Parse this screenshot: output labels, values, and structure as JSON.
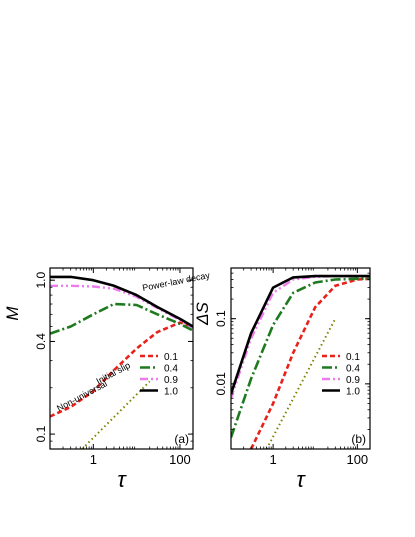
{
  "chart_data": [
    {
      "type": "line",
      "panel_label": "(a)",
      "ylabel": "M",
      "xlabel": "τ",
      "xscale": "log",
      "yscale": "log",
      "xlim": [
        0.1,
        200
      ],
      "ylim": [
        0.08,
        1.2
      ],
      "xticks": [
        {
          "v": 1,
          "label": "1"
        },
        {
          "v": 100,
          "label": "100"
        }
      ],
      "yticks": [
        {
          "v": 0.1,
          "label": "0.1"
        },
        {
          "v": 0.4,
          "label": "0.4"
        },
        {
          "v": 1.0,
          "label": "1.0"
        }
      ],
      "legend_position": "bottom-right",
      "annotations": [
        {
          "text": "Power-law decay",
          "x": 14,
          "y": 0.85,
          "angle": -11
        },
        {
          "text": "Initial slip",
          "x": 1.3,
          "y": 0.21,
          "angle": -28
        },
        {
          "text": "Non-universal",
          "x": 0.16,
          "y": 0.14,
          "angle": -28
        }
      ],
      "series": [
        {
          "name": "0.1",
          "color": "#e8211b",
          "dash": "5,3",
          "width": 2.6,
          "x": [
            0.1,
            0.3,
            1,
            3,
            10,
            30,
            100,
            200
          ],
          "y": [
            0.13,
            0.15,
            0.19,
            0.26,
            0.36,
            0.46,
            0.53,
            0.5
          ]
        },
        {
          "name": "0.4",
          "color": "#1e7a1e",
          "dash": "10,3,2,3",
          "width": 2.6,
          "x": [
            0.1,
            0.3,
            1,
            3,
            10,
            30,
            100,
            200
          ],
          "y": [
            0.45,
            0.5,
            0.6,
            0.7,
            0.69,
            0.6,
            0.52,
            0.47
          ]
        },
        {
          "name": "0.9",
          "color": "#ee7bee",
          "dash": "8,3,2,3,2,3",
          "width": 2.4,
          "x": [
            0.1,
            0.3,
            1,
            3,
            10,
            30,
            100,
            200
          ],
          "y": [
            0.92,
            0.92,
            0.91,
            0.88,
            0.78,
            0.66,
            0.55,
            0.49
          ]
        },
        {
          "name": "1.0",
          "color": "#000000",
          "dash": "",
          "width": 2.6,
          "x": [
            0.1,
            0.3,
            1,
            3,
            10,
            30,
            100,
            200
          ],
          "y": [
            1.05,
            1.05,
            1.0,
            0.92,
            0.8,
            0.67,
            0.56,
            0.5
          ]
        },
        {
          "name": "",
          "color": "#808000",
          "dash": "1.5,3",
          "width": 2,
          "x": [
            0.55,
            20
          ],
          "y": [
            0.08,
            0.22
          ]
        }
      ]
    },
    {
      "type": "line",
      "panel_label": "(b)",
      "ylabel": "ΔS",
      "xlabel": "τ",
      "xscale": "log",
      "yscale": "log",
      "xlim": [
        0.1,
        200
      ],
      "ylim": [
        0.001,
        0.6
      ],
      "xticks": [
        {
          "v": 1,
          "label": "1"
        },
        {
          "v": 100,
          "label": "100"
        }
      ],
      "yticks": [
        {
          "v": 0.01,
          "label": "0.01"
        },
        {
          "v": 0.1,
          "label": "0.1"
        }
      ],
      "legend_position": "bottom-right",
      "series": [
        {
          "name": "0.1",
          "color": "#e8211b",
          "dash": "5,3",
          "width": 2.6,
          "x": [
            0.3,
            1,
            3,
            10,
            30,
            100,
            200
          ],
          "y": [
            0.001,
            0.005,
            0.03,
            0.15,
            0.32,
            0.4,
            0.41
          ]
        },
        {
          "name": "0.4",
          "color": "#1e7a1e",
          "dash": "10,3,2,3",
          "width": 2.6,
          "x": [
            0.1,
            0.3,
            1,
            3,
            10,
            30,
            100,
            200
          ],
          "y": [
            0.0015,
            0.012,
            0.08,
            0.25,
            0.36,
            0.4,
            0.41,
            0.41
          ]
        },
        {
          "name": "0.9",
          "color": "#ee7bee",
          "dash": "8,3,2,3,2,3",
          "width": 2.4,
          "x": [
            0.1,
            0.3,
            1,
            3,
            10,
            30,
            100,
            200
          ],
          "y": [
            0.006,
            0.05,
            0.25,
            0.4,
            0.44,
            0.45,
            0.45,
            0.45
          ]
        },
        {
          "name": "1.0",
          "color": "#000000",
          "dash": "",
          "width": 2.6,
          "x": [
            0.1,
            0.3,
            1,
            3,
            10,
            30,
            100,
            200
          ],
          "y": [
            0.007,
            0.06,
            0.3,
            0.43,
            0.45,
            0.45,
            0.45,
            0.45
          ]
        },
        {
          "name": "",
          "color": "#808000",
          "dash": "1.5,3",
          "width": 2,
          "x": [
            0.7,
            30
          ],
          "y": [
            0.001,
            0.1
          ]
        }
      ]
    }
  ]
}
